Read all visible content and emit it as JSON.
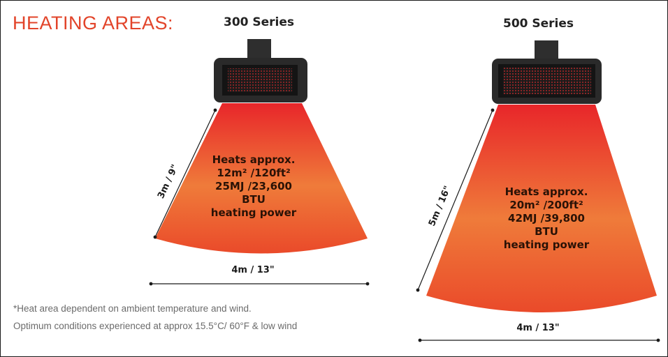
{
  "title": "HEATING AREAS:",
  "colors": {
    "title": "#e2442a",
    "heat_top": "#e8262a",
    "heat_mid": "#ef7b3a",
    "heat_bottom": "#ea4a2a",
    "heater_body": "#2a2a2a",
    "led": "#c0282a"
  },
  "heaters": [
    {
      "name": "300 Series",
      "side_dimension": "3m / 9\"",
      "width_dimension": "4m / 13\"",
      "heat_lines": [
        "Heats approx.",
        "12m² /120ft²",
        "25MJ /23,600",
        "BTU",
        "heating power"
      ]
    },
    {
      "name": "500 Series",
      "side_dimension": "5m / 16\"",
      "width_dimension": "4m / 13\"",
      "heat_lines": [
        "Heats approx.",
        "20m² /200ft²",
        "42MJ /39,800",
        "BTU",
        "heating power"
      ]
    }
  ],
  "notes": [
    "*Heat area dependent on ambient temperature and wind.",
    "Optimum conditions experienced at approx 15.5°C/ 60°F & low wind"
  ]
}
